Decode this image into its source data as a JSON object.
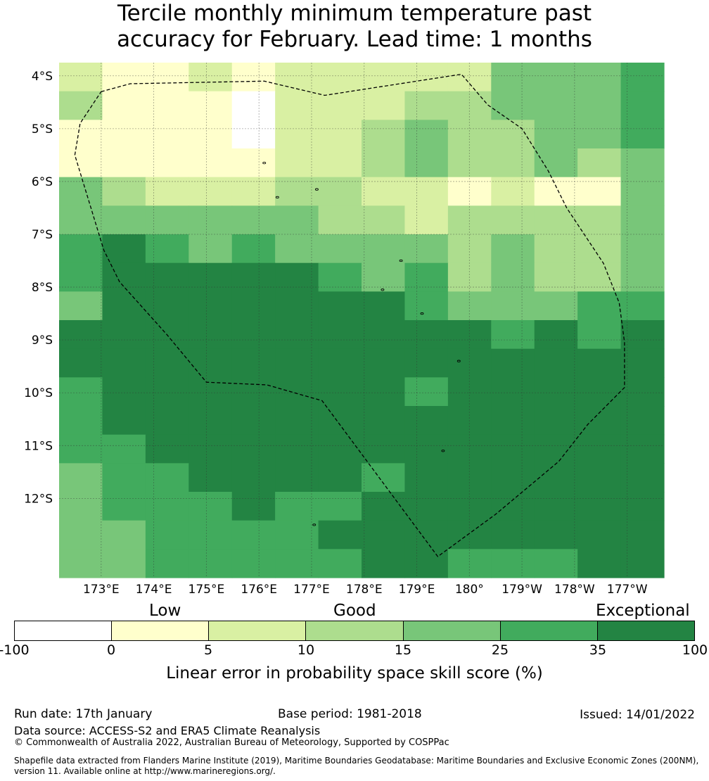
{
  "title": {
    "line1": "Tercile monthly minimum temperature past",
    "line2": "accuracy for February. Lead time: 1 months"
  },
  "chart_data": {
    "type": "heatmap",
    "title": "Tercile monthly minimum temperature past accuracy for February. Lead time: 1 months",
    "x_tick_labels": [
      "173°E",
      "174°E",
      "175°E",
      "176°E",
      "177°E",
      "178°E",
      "179°E",
      "180°",
      "179°W",
      "178°W",
      "177°W"
    ],
    "y_tick_labels": [
      "4°S",
      "5°S",
      "6°S",
      "7°S",
      "8°S",
      "9°S",
      "10°S",
      "11°S",
      "12°S"
    ],
    "lon_range": [
      172.2,
      183.7
    ],
    "lat_range": [
      -13.5,
      -3.75
    ],
    "grid_columns": 14,
    "grid_rows": 18,
    "grid_note": "cell value = colour class index 0..6 (0:-100–0, 1:0–5, 2:5–10, 3:10–15, 4:15–25, 5:25–35, 6:35–100)",
    "cells": [
      [
        2,
        1,
        1,
        2,
        1,
        2,
        2,
        2,
        2,
        2,
        4,
        4,
        4,
        5
      ],
      [
        3,
        1,
        1,
        1,
        0,
        2,
        2,
        2,
        3,
        3,
        4,
        4,
        4,
        5
      ],
      [
        1,
        1,
        1,
        1,
        0,
        2,
        2,
        3,
        4,
        3,
        3,
        4,
        4,
        5
      ],
      [
        1,
        1,
        1,
        1,
        1,
        2,
        2,
        3,
        4,
        3,
        3,
        4,
        3,
        4
      ],
      [
        4,
        3,
        2,
        2,
        2,
        3,
        3,
        2,
        2,
        1,
        2,
        1,
        1,
        4
      ],
      [
        4,
        4,
        4,
        4,
        4,
        4,
        3,
        3,
        2,
        3,
        3,
        3,
        3,
        4
      ],
      [
        5,
        6,
        5,
        4,
        5,
        4,
        4,
        4,
        4,
        3,
        4,
        3,
        3,
        4
      ],
      [
        5,
        6,
        6,
        6,
        6,
        6,
        5,
        4,
        5,
        3,
        4,
        3,
        3,
        4
      ],
      [
        4,
        6,
        6,
        6,
        6,
        6,
        6,
        6,
        5,
        4,
        4,
        4,
        5,
        5
      ],
      [
        6,
        6,
        6,
        6,
        6,
        6,
        6,
        6,
        6,
        6,
        5,
        6,
        5,
        6
      ],
      [
        6,
        6,
        6,
        6,
        6,
        6,
        6,
        6,
        6,
        6,
        6,
        6,
        6,
        6
      ],
      [
        5,
        6,
        6,
        6,
        6,
        6,
        6,
        6,
        5,
        6,
        6,
        6,
        6,
        6
      ],
      [
        5,
        6,
        6,
        6,
        6,
        6,
        6,
        6,
        6,
        6,
        6,
        6,
        6,
        6
      ],
      [
        5,
        5,
        6,
        6,
        6,
        6,
        6,
        6,
        6,
        6,
        6,
        6,
        6,
        6
      ],
      [
        4,
        5,
        5,
        6,
        6,
        6,
        6,
        5,
        6,
        6,
        6,
        6,
        6,
        6
      ],
      [
        4,
        5,
        5,
        5,
        6,
        5,
        5,
        6,
        6,
        6,
        6,
        6,
        6,
        6
      ],
      [
        4,
        4,
        5,
        5,
        5,
        5,
        6,
        6,
        6,
        6,
        6,
        6,
        6,
        6
      ],
      [
        4,
        4,
        5,
        5,
        5,
        5,
        5,
        6,
        6,
        5,
        5,
        5,
        6,
        6
      ]
    ],
    "colorbar": {
      "label": "Linear error in probability space skill score (%)",
      "category_labels": [
        "Low",
        "Good",
        "Exceptional"
      ],
      "boundaries": [
        "-100",
        "0",
        "5",
        "10",
        "15",
        "25",
        "35",
        "100"
      ],
      "colors": [
        "#ffffff",
        "#ffffcc",
        "#d9f0a3",
        "#addd8e",
        "#78c679",
        "#41ab5d",
        "#238443"
      ]
    },
    "boundary": {
      "style": "dashed",
      "path_lonlat": [
        [
          173.0,
          -4.3
        ],
        [
          173.55,
          -4.15
        ],
        [
          176.1,
          -4.1
        ],
        [
          177.25,
          -4.37
        ],
        [
          179.85,
          -3.97
        ],
        [
          180.35,
          -4.55
        ],
        [
          181.0,
          -5.0
        ],
        [
          181.5,
          -5.8
        ],
        [
          181.85,
          -6.5
        ],
        [
          182.55,
          -7.55
        ],
        [
          182.85,
          -8.3
        ],
        [
          182.95,
          -9.05
        ],
        [
          182.95,
          -9.9
        ],
        [
          182.25,
          -10.6
        ],
        [
          181.7,
          -11.3
        ],
        [
          180.5,
          -12.3
        ],
        [
          179.4,
          -13.1
        ],
        [
          177.2,
          -10.15
        ],
        [
          176.15,
          -9.85
        ],
        [
          175.0,
          -9.8
        ],
        [
          174.25,
          -8.9
        ],
        [
          173.35,
          -7.9
        ],
        [
          173.05,
          -7.3
        ],
        [
          172.5,
          -5.5
        ],
        [
          172.6,
          -4.9
        ],
        [
          173.0,
          -4.3
        ]
      ],
      "islands_lonlat": [
        [
          176.1,
          -5.65
        ],
        [
          176.35,
          -6.3
        ],
        [
          177.1,
          -6.15
        ],
        [
          178.7,
          -7.5
        ],
        [
          178.35,
          -8.05
        ],
        [
          179.1,
          -8.5
        ],
        [
          179.8,
          -9.4
        ],
        [
          179.5,
          -11.1
        ],
        [
          177.05,
          -12.5
        ]
      ]
    }
  },
  "footer": {
    "run_date": "Run date: 17th January",
    "base_period": "Base period: 1981-2018",
    "issued": "Issued: 14/01/2022",
    "data_source": "Data source: ACCESS-S2 and ERA5 Climate Reanalysis",
    "copyright": "© Commonwealth of Australia 2022, Australian Bureau of Meteorology, Supported by COSPPac",
    "shapefile_line1": "Shapefile data extracted from Flanders Marine Institute (2019), Maritime Boundaries Geodatabase: Maritime Boundaries and Exclusive Economic Zones (200NM),",
    "shapefile_line2": "version 11. Available online at http://www.marineregions.org/."
  }
}
